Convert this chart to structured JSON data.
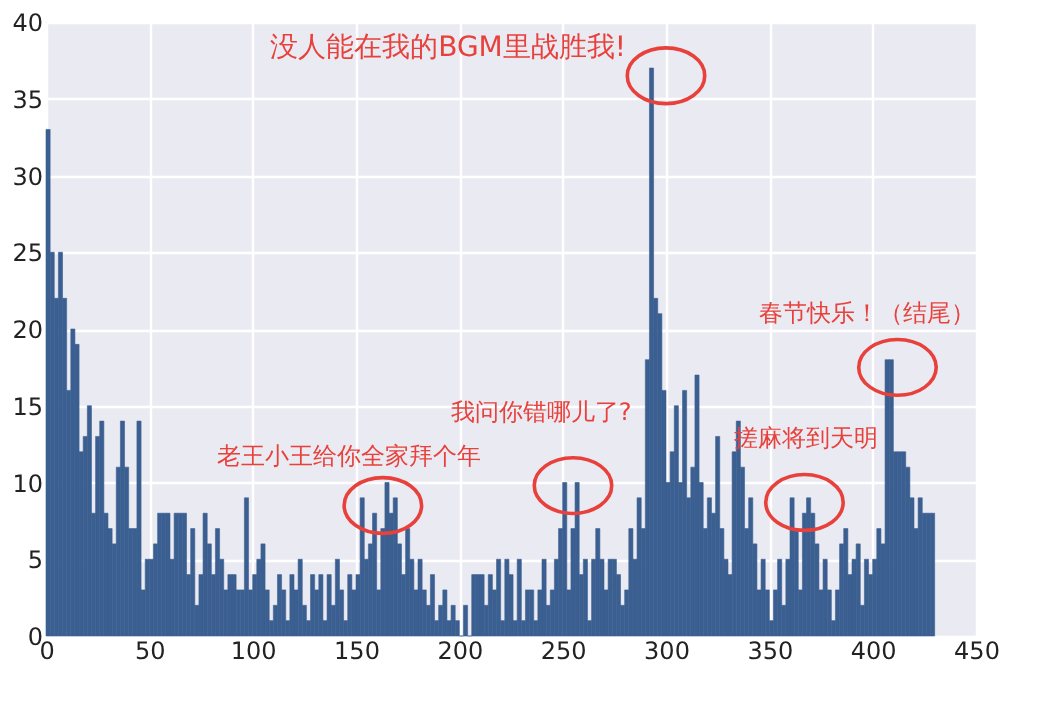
{
  "chart_data": {
    "type": "histogram",
    "bins": [
      0,
      2,
      4,
      6,
      8,
      10,
      12,
      14,
      16,
      18,
      20,
      22,
      24,
      26,
      28,
      30,
      32,
      34,
      36,
      38,
      40,
      42,
      44,
      46,
      48,
      50,
      52,
      54,
      56,
      58,
      60,
      62,
      64,
      66,
      68,
      70,
      72,
      74,
      76,
      78,
      80,
      82,
      84,
      86,
      88,
      90,
      92,
      94,
      96,
      98,
      100,
      102,
      104,
      106,
      108,
      110,
      112,
      114,
      116,
      118,
      120,
      122,
      124,
      126,
      128,
      130,
      132,
      134,
      136,
      138,
      140,
      142,
      144,
      146,
      148,
      150,
      152,
      154,
      156,
      158,
      160,
      162,
      164,
      166,
      168,
      170,
      172,
      174,
      176,
      178,
      180,
      182,
      184,
      186,
      188,
      190,
      192,
      194,
      196,
      198,
      200,
      202,
      204,
      206,
      208,
      210,
      212,
      214,
      216,
      218,
      220,
      222,
      224,
      226,
      228,
      230,
      232,
      234,
      236,
      238,
      240,
      242,
      244,
      246,
      248,
      250,
      252,
      254,
      256,
      258,
      260,
      262,
      264,
      266,
      268,
      270,
      272,
      274,
      276,
      278,
      280,
      282,
      284,
      286,
      288,
      290,
      292,
      294,
      296,
      298,
      300,
      302,
      304,
      306,
      308,
      310,
      312,
      314,
      316,
      318,
      320,
      322,
      324,
      326,
      328,
      330,
      332,
      334,
      336,
      338,
      340,
      342,
      344,
      346,
      348,
      350,
      352,
      354,
      356,
      358,
      360,
      362,
      364,
      366,
      368,
      370,
      372,
      374,
      376,
      378,
      380,
      382,
      384,
      386,
      388,
      390,
      392,
      394,
      396,
      398,
      400,
      402,
      404,
      406,
      408,
      410,
      412,
      414,
      416,
      418,
      420,
      422,
      424,
      426,
      428,
      430
    ],
    "values": [
      33,
      25,
      22,
      25,
      22,
      16,
      20,
      19,
      12,
      13,
      15,
      8,
      13,
      14,
      8,
      7,
      6,
      11,
      14,
      11,
      7,
      7,
      14,
      3,
      5,
      5,
      6,
      8,
      8,
      8,
      5,
      8,
      8,
      8,
      4,
      7,
      2,
      4,
      8,
      6,
      4,
      7,
      5,
      3,
      4,
      4,
      3,
      3,
      9,
      3,
      4,
      5,
      6,
      3,
      1,
      2,
      4,
      3,
      1,
      4,
      3,
      5,
      2,
      1,
      4,
      3,
      4,
      1,
      4,
      2,
      5,
      3,
      1,
      4,
      3,
      4,
      9,
      5,
      6,
      8,
      3,
      7,
      10,
      8,
      9,
      6,
      4,
      7,
      5,
      3,
      5,
      3,
      2,
      4,
      1,
      2,
      3,
      1,
      2,
      1,
      0,
      2,
      0,
      4,
      4,
      4,
      2,
      4,
      3,
      5,
      1,
      5,
      4,
      1,
      5,
      1,
      3,
      3,
      1,
      3,
      5,
      2,
      3,
      5,
      7,
      10,
      3,
      7,
      10,
      4,
      5,
      1,
      5,
      7,
      5,
      3,
      5,
      5,
      4,
      2,
      3,
      7,
      5,
      9,
      7,
      18,
      37,
      22,
      21,
      16,
      10,
      12,
      15,
      10,
      16,
      9,
      11,
      17,
      10,
      7,
      9,
      8,
      13,
      7,
      5,
      4,
      12,
      14,
      11,
      7,
      9,
      6,
      3,
      5,
      3,
      1,
      3,
      5,
      2,
      5,
      9,
      7,
      3,
      8,
      9,
      8,
      6,
      3,
      5,
      3,
      1,
      3,
      6,
      7,
      4,
      5,
      6,
      2,
      5,
      4,
      5,
      7,
      6,
      18,
      18,
      12,
      12,
      12,
      11,
      9,
      7,
      9,
      8,
      8,
      8
    ],
    "color": "#3b5f91",
    "xlim": [
      0,
      450
    ],
    "xticks": [
      0,
      50,
      100,
      150,
      200,
      250,
      300,
      350,
      400,
      450
    ],
    "ylim": [
      0,
      40
    ],
    "yticks": [
      0,
      5,
      10,
      15,
      20,
      25,
      30,
      35,
      40
    ],
    "grid": true,
    "annotations": [
      {
        "text": "没人能在我的BGM里战胜我!",
        "x": 300,
        "y": 36.5
      },
      {
        "text": "老王小王给你全家拜个年",
        "x": 163,
        "y": 8.5
      },
      {
        "text": "我问你错哪儿了?",
        "x": 255,
        "y": 9.8
      },
      {
        "text": "搓麻将到天明",
        "x": 367,
        "y": 8.7
      },
      {
        "text": "春节快乐！（结尾）",
        "x": 412,
        "y": 17.5
      }
    ]
  }
}
